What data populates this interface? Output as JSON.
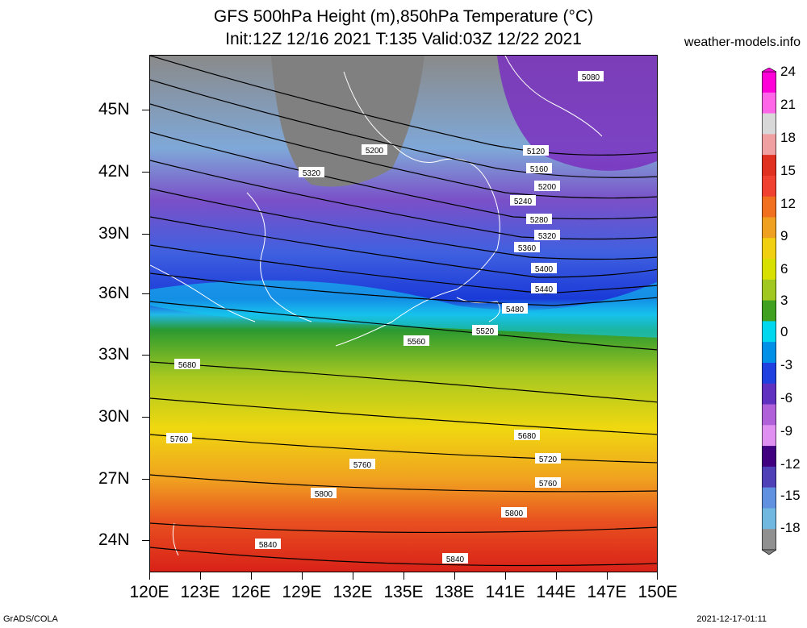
{
  "title_line1": "GFS 500hPa Height (m),850hPa Temperature (°C)",
  "title_line2": "Init:12Z 12/16 2021 T:135 Valid:03Z 12/22 2021",
  "site": "weather-models.info",
  "footer_left": "GrADS/COLA",
  "footer_right": "2021-12-17-01:11",
  "y_ticks": [
    "45N",
    "42N",
    "39N",
    "36N",
    "33N",
    "30N",
    "27N",
    "24N"
  ],
  "x_ticks": [
    "120E",
    "123E",
    "126E",
    "129E",
    "132E",
    "135E",
    "138E",
    "141E",
    "144E",
    "147E",
    "150E"
  ],
  "colorbar_labels": [
    "24",
    "21",
    "18",
    "15",
    "12",
    "9",
    "6",
    "3",
    "0",
    "-3",
    "-6",
    "-9",
    "-12",
    "-15",
    "-18"
  ],
  "colorbar_colors": [
    "#ff00d8",
    "#ff66e8",
    "#d8d8d8",
    "#f0a0a0",
    "#e03020",
    "#f04030",
    "#f07020",
    "#f0a020",
    "#f0d010",
    "#d8e000",
    "#a0c820",
    "#40a020",
    "#00d8f0",
    "#0090e8",
    "#2040e0",
    "#6030c0",
    "#b060d8",
    "#e090f0",
    "#400080",
    "#5040b8",
    "#6090e0",
    "#70b8e0",
    "#909090"
  ],
  "contour_labels": [
    {
      "text": "5080"
    },
    {
      "text": "5120"
    },
    {
      "text": "5160"
    },
    {
      "text": "5200"
    },
    {
      "text": "5200"
    },
    {
      "text": "5240"
    },
    {
      "text": "5280"
    },
    {
      "text": "5320"
    },
    {
      "text": "5320"
    },
    {
      "text": "5360"
    },
    {
      "text": "5400"
    },
    {
      "text": "5440"
    },
    {
      "text": "5480"
    },
    {
      "text": "5520"
    },
    {
      "text": "5560"
    },
    {
      "text": "5680"
    },
    {
      "text": "5680"
    },
    {
      "text": "5720"
    },
    {
      "text": "5760"
    },
    {
      "text": "5760"
    },
    {
      "text": "5760"
    },
    {
      "text": "5800"
    },
    {
      "text": "5800"
    },
    {
      "text": "5840"
    },
    {
      "text": "5840"
    }
  ]
}
